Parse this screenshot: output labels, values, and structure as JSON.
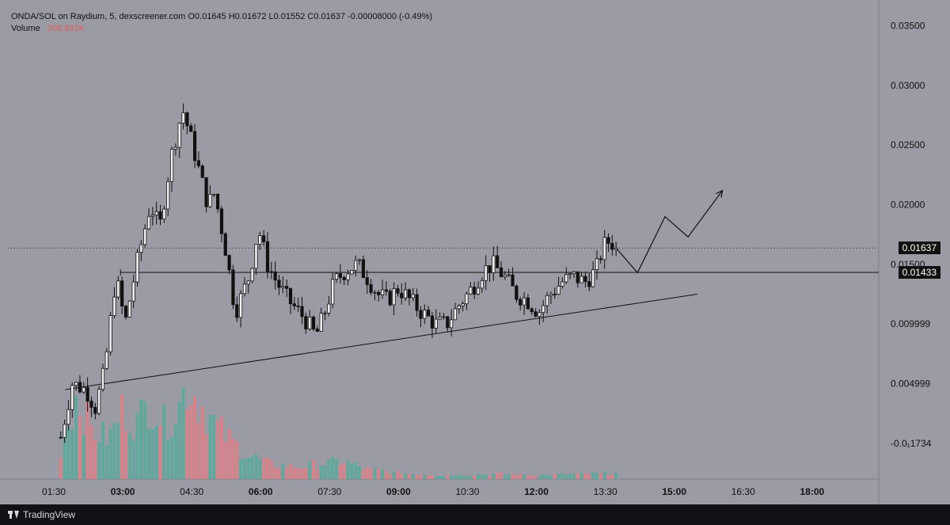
{
  "legend": {
    "line1": "ONDA/SOL on Raydium, 5, dexscreener.com  O0.01645  H0.01672  L0.01552  C0.01637  -0.00008000 (-0.49%)",
    "volume_label": "Volume",
    "volume_value": "208.891K"
  },
  "price_tags": {
    "current": "0.01637",
    "level": "0.01433"
  },
  "footer": {
    "brand": "TradingView"
  },
  "colors": {
    "up": "#5fa89c",
    "down": "#d9828a",
    "background": "#9b9ba5",
    "candle": "#111111"
  },
  "chart_data": {
    "type": "candlestick",
    "x_tick_labels": [
      {
        "label": "01:30",
        "time": 1.5,
        "bold": false
      },
      {
        "label": "03:00",
        "time": 3.0,
        "bold": true
      },
      {
        "label": "04:30",
        "time": 4.5,
        "bold": false
      },
      {
        "label": "06:00",
        "time": 6.0,
        "bold": true
      },
      {
        "label": "07:30",
        "time": 7.5,
        "bold": false
      },
      {
        "label": "09:00",
        "time": 9.0,
        "bold": true
      },
      {
        "label": "10:30",
        "time": 10.5,
        "bold": false
      },
      {
        "label": "12:00",
        "time": 12.0,
        "bold": true
      },
      {
        "label": "13:30",
        "time": 13.5,
        "bold": false
      },
      {
        "label": "15:00",
        "time": 15.0,
        "bold": true
      },
      {
        "label": "16:30",
        "time": 16.5,
        "bold": false
      },
      {
        "label": "18:00",
        "time": 18.0,
        "bold": true
      }
    ],
    "y_tick_labels": [
      {
        "label": "0.03500",
        "value": 0.035
      },
      {
        "label": "0.03000",
        "value": 0.03
      },
      {
        "label": "0.02500",
        "value": 0.025
      },
      {
        "label": "0.02000",
        "value": 0.02
      },
      {
        "label": "0.01500",
        "value": 0.015
      },
      {
        "label": "0.009999",
        "value": 0.01
      },
      {
        "label": "0.004999",
        "value": 0.005
      },
      {
        "label": "-0.0₁1734",
        "value": 0.0
      }
    ],
    "ylim": [
      -0.003,
      0.0365
    ],
    "xlim": [
      0.5,
      19.45
    ],
    "candle_anchors": [
      {
        "t": 1.65,
        "c": 0.0005
      },
      {
        "t": 1.9,
        "c": 0.005
      },
      {
        "t": 2.2,
        "c": 0.0045
      },
      {
        "t": 2.4,
        "c": 0.003
      },
      {
        "t": 2.6,
        "c": 0.006
      },
      {
        "t": 2.85,
        "c": 0.014
      },
      {
        "t": 3.05,
        "c": 0.01
      },
      {
        "t": 3.3,
        "c": 0.015
      },
      {
        "t": 3.6,
        "c": 0.02
      },
      {
        "t": 3.8,
        "c": 0.018
      },
      {
        "t": 4.05,
        "c": 0.024
      },
      {
        "t": 4.3,
        "c": 0.028
      },
      {
        "t": 4.45,
        "c": 0.026
      },
      {
        "t": 4.65,
        "c": 0.023
      },
      {
        "t": 4.85,
        "c": 0.02
      },
      {
        "t": 5.0,
        "c": 0.021
      },
      {
        "t": 5.25,
        "c": 0.016
      },
      {
        "t": 5.45,
        "c": 0.011
      },
      {
        "t": 5.75,
        "c": 0.014
      },
      {
        "t": 5.95,
        "c": 0.018
      },
      {
        "t": 6.15,
        "c": 0.015
      },
      {
        "t": 6.35,
        "c": 0.0135
      },
      {
        "t": 6.6,
        "c": 0.012
      },
      {
        "t": 6.95,
        "c": 0.0105
      },
      {
        "t": 7.2,
        "c": 0.009
      },
      {
        "t": 7.35,
        "c": 0.0105
      },
      {
        "t": 7.6,
        "c": 0.0135
      },
      {
        "t": 7.85,
        "c": 0.0145
      },
      {
        "t": 8.1,
        "c": 0.015
      },
      {
        "t": 8.3,
        "c": 0.014
      },
      {
        "t": 8.55,
        "c": 0.0125
      },
      {
        "t": 8.75,
        "c": 0.012
      },
      {
        "t": 9.0,
        "c": 0.013
      },
      {
        "t": 9.25,
        "c": 0.012
      },
      {
        "t": 9.5,
        "c": 0.011
      },
      {
        "t": 9.8,
        "c": 0.01
      },
      {
        "t": 10.05,
        "c": 0.01
      },
      {
        "t": 10.3,
        "c": 0.0115
      },
      {
        "t": 10.6,
        "c": 0.013
      },
      {
        "t": 10.85,
        "c": 0.0145
      },
      {
        "t": 11.05,
        "c": 0.015
      },
      {
        "t": 11.3,
        "c": 0.014
      },
      {
        "t": 11.55,
        "c": 0.0125
      },
      {
        "t": 11.8,
        "c": 0.012
      },
      {
        "t": 12.05,
        "c": 0.011
      },
      {
        "t": 12.3,
        "c": 0.0125
      },
      {
        "t": 12.55,
        "c": 0.0135
      },
      {
        "t": 12.8,
        "c": 0.014
      },
      {
        "t": 13.05,
        "c": 0.0135
      },
      {
        "t": 13.3,
        "c": 0.0145
      },
      {
        "t": 13.45,
        "c": 0.0165
      },
      {
        "t": 13.6,
        "c": 0.017
      },
      {
        "t": 13.75,
        "c": 0.01637
      }
    ],
    "volume_anchors": [
      {
        "t": 1.65,
        "v": 0.3
      },
      {
        "t": 2.0,
        "v": 0.85
      },
      {
        "t": 2.3,
        "v": 0.5
      },
      {
        "t": 2.7,
        "v": 0.4
      },
      {
        "t": 3.0,
        "v": 0.7
      },
      {
        "t": 3.3,
        "v": 0.55
      },
      {
        "t": 3.6,
        "v": 0.8
      },
      {
        "t": 3.9,
        "v": 0.55
      },
      {
        "t": 4.2,
        "v": 0.7
      },
      {
        "t": 4.4,
        "v": 0.95
      },
      {
        "t": 4.7,
        "v": 0.75
      },
      {
        "t": 5.0,
        "v": 0.55
      },
      {
        "t": 5.3,
        "v": 0.4
      },
      {
        "t": 5.7,
        "v": 0.25
      },
      {
        "t": 6.2,
        "v": 0.15
      },
      {
        "t": 6.8,
        "v": 0.12
      },
      {
        "t": 7.3,
        "v": 0.15
      },
      {
        "t": 7.8,
        "v": 0.18
      },
      {
        "t": 8.3,
        "v": 0.1
      },
      {
        "t": 9.0,
        "v": 0.06
      },
      {
        "t": 10.0,
        "v": 0.04
      },
      {
        "t": 11.0,
        "v": 0.05
      },
      {
        "t": 12.0,
        "v": 0.04
      },
      {
        "t": 13.0,
        "v": 0.05
      },
      {
        "t": 13.75,
        "v": 0.06
      }
    ],
    "horizontal_line": {
      "value": 0.01433,
      "from_time": 2.95
    },
    "current_price": 0.01637,
    "trendline": {
      "points": [
        {
          "t": 1.75,
          "v": 0.0045
        },
        {
          "t": 15.5,
          "v": 0.0125
        }
      ]
    },
    "projection_path": [
      {
        "t": 13.75,
        "v": 0.0163
      },
      {
        "t": 14.2,
        "v": 0.0143
      },
      {
        "t": 14.8,
        "v": 0.019
      },
      {
        "t": 15.3,
        "v": 0.0173
      },
      {
        "t": 16.05,
        "v": 0.0212
      }
    ],
    "grid": false,
    "volume_scale": {
      "max_height_ratio": 0.25
    }
  }
}
